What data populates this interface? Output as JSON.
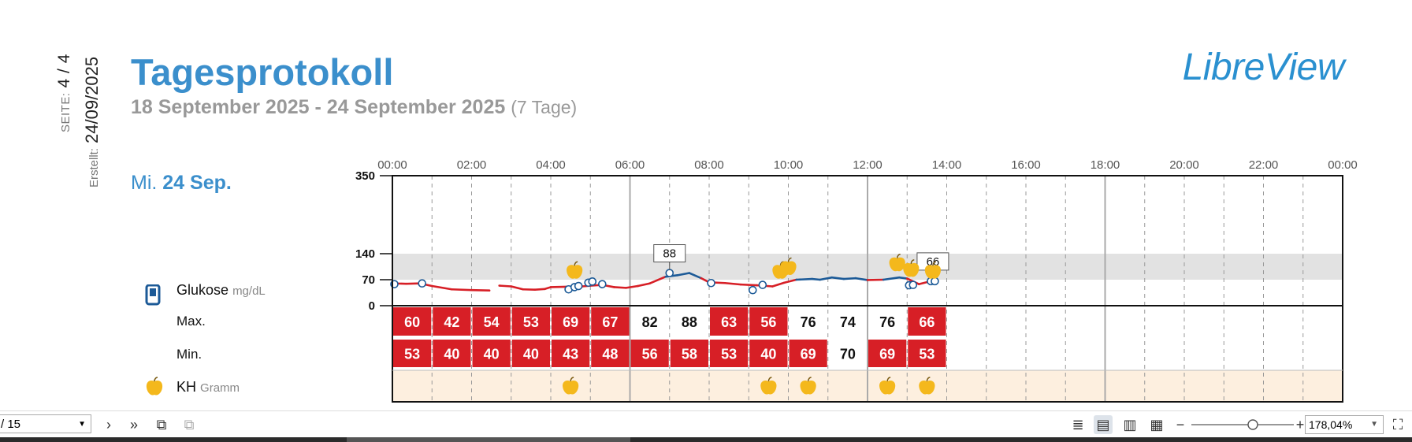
{
  "header": {
    "page_label": "SEITE:",
    "page_value": "4 / 4",
    "created_label": "Erstellt:",
    "created_value": "24/09/2025",
    "title": "Tagesprotokoll",
    "date_range": "18 September 2025 - 24 September 2025",
    "days": "(7 Tage)",
    "brand": "LibreView"
  },
  "day": {
    "weekday": "Mi.",
    "date": "24 Sep."
  },
  "legend": {
    "glucose_label": "Glukose",
    "glucose_unit": "mg/dL",
    "max_label": "Max.",
    "min_label": "Min.",
    "carbs_label": "KH",
    "carbs_unit": "Gramm"
  },
  "colors": {
    "brand": "#2a90d0",
    "low": "#d71f26",
    "inrange": "#1c5a97",
    "target": "#e2e2e2",
    "carbs_band": "#fdefdf",
    "apple": "#f4b81c"
  },
  "chart_data": {
    "type": "line",
    "x_ticks": [
      "00:00",
      "02:00",
      "04:00",
      "06:00",
      "08:00",
      "10:00",
      "12:00",
      "14:00",
      "16:00",
      "18:00",
      "20:00",
      "22:00",
      "00:00"
    ],
    "y_ticks": [
      0,
      70,
      140,
      350
    ],
    "ylim": [
      0,
      350
    ],
    "target_range": [
      70,
      140
    ],
    "glucose_series": [
      {
        "t": 0.0,
        "v": 60
      },
      {
        "t": 0.35,
        "v": 59
      },
      {
        "t": 0.7,
        "v": 60
      },
      {
        "t": 1.0,
        "v": 53
      },
      {
        "t": 1.5,
        "v": 44
      },
      {
        "t": 2.0,
        "v": 42
      },
      {
        "t": 2.45,
        "v": 41
      },
      {
        "t": 2.5,
        "v": null
      },
      {
        "t": 2.7,
        "v": 54
      },
      {
        "t": 3.0,
        "v": 52
      },
      {
        "t": 3.3,
        "v": 44
      },
      {
        "t": 3.6,
        "v": 43
      },
      {
        "t": 3.85,
        "v": 45
      },
      {
        "t": 4.0,
        "v": 50
      },
      {
        "t": 4.4,
        "v": 51
      },
      {
        "t": 4.8,
        "v": 52
      },
      {
        "t": 5.0,
        "v": 54
      },
      {
        "t": 5.3,
        "v": 56
      },
      {
        "t": 5.6,
        "v": 50
      },
      {
        "t": 5.9,
        "v": 48
      },
      {
        "t": 6.2,
        "v": 53
      },
      {
        "t": 6.5,
        "v": 60
      },
      {
        "t": 6.9,
        "v": 78
      },
      {
        "t": 7.2,
        "v": 82
      },
      {
        "t": 7.5,
        "v": 88
      },
      {
        "t": 7.8,
        "v": 74
      },
      {
        "t": 8.0,
        "v": 63
      },
      {
        "t": 8.4,
        "v": 61
      },
      {
        "t": 8.8,
        "v": 57
      },
      {
        "t": 9.2,
        "v": 55
      },
      {
        "t": 9.6,
        "v": 52
      },
      {
        "t": 9.9,
        "v": 62
      },
      {
        "t": 10.2,
        "v": 70
      },
      {
        "t": 10.6,
        "v": 72
      },
      {
        "t": 10.8,
        "v": 70
      },
      {
        "t": 11.1,
        "v": 76
      },
      {
        "t": 11.4,
        "v": 72
      },
      {
        "t": 11.7,
        "v": 74
      },
      {
        "t": 12.0,
        "v": 69
      },
      {
        "t": 12.4,
        "v": 70
      },
      {
        "t": 12.8,
        "v": 76
      },
      {
        "t": 13.0,
        "v": 73
      },
      {
        "t": 13.3,
        "v": 58
      },
      {
        "t": 13.6,
        "v": 66
      }
    ],
    "scan_points": [
      {
        "t": 0.05,
        "v": 58
      },
      {
        "t": 0.75,
        "v": 60
      },
      {
        "t": 4.45,
        "v": 44
      },
      {
        "t": 4.6,
        "v": 50
      },
      {
        "t": 4.7,
        "v": 53
      },
      {
        "t": 4.95,
        "v": 62
      },
      {
        "t": 5.05,
        "v": 65
      },
      {
        "t": 5.3,
        "v": 58
      },
      {
        "t": 7.0,
        "v": 88
      },
      {
        "t": 8.05,
        "v": 61
      },
      {
        "t": 9.1,
        "v": 42
      },
      {
        "t": 9.35,
        "v": 56
      },
      {
        "t": 13.05,
        "v": 55
      },
      {
        "t": 13.15,
        "v": 56
      },
      {
        "t": 13.6,
        "v": 66
      },
      {
        "t": 13.7,
        "v": 66
      }
    ],
    "labels": [
      {
        "t": 7.0,
        "v": 88,
        "text": "88"
      },
      {
        "t": 13.65,
        "v": 66,
        "text": "66"
      }
    ],
    "meal_markers": [
      {
        "t": 4.6,
        "v": 95
      },
      {
        "t": 9.8,
        "v": 95
      },
      {
        "t": 10.0,
        "v": 105
      },
      {
        "t": 12.75,
        "v": 115
      },
      {
        "t": 13.1,
        "v": 100
      },
      {
        "t": 13.65,
        "v": 95
      }
    ],
    "hourly_max": [
      {
        "hour": 0,
        "value": "60",
        "low": true
      },
      {
        "hour": 1,
        "value": "42",
        "low": true
      },
      {
        "hour": 2,
        "value": "54",
        "low": true
      },
      {
        "hour": 3,
        "value": "53",
        "low": true
      },
      {
        "hour": 4,
        "value": "69",
        "low": true
      },
      {
        "hour": 5,
        "value": "67",
        "low": true
      },
      {
        "hour": 6,
        "value": "82",
        "low": false
      },
      {
        "hour": 7,
        "value": "88",
        "low": false
      },
      {
        "hour": 8,
        "value": "63",
        "low": true
      },
      {
        "hour": 9,
        "value": "56",
        "low": true
      },
      {
        "hour": 10,
        "value": "76",
        "low": false
      },
      {
        "hour": 11,
        "value": "74",
        "low": false
      },
      {
        "hour": 12,
        "value": "76",
        "low": false
      },
      {
        "hour": 13,
        "value": "66",
        "low": true
      }
    ],
    "hourly_min": [
      {
        "hour": 0,
        "value": "53",
        "low": true
      },
      {
        "hour": 1,
        "value": "40",
        "low": true
      },
      {
        "hour": 2,
        "value": "40",
        "low": true
      },
      {
        "hour": 3,
        "value": "40",
        "low": true
      },
      {
        "hour": 4,
        "value": "43",
        "low": true
      },
      {
        "hour": 5,
        "value": "48",
        "low": true
      },
      {
        "hour": 6,
        "value": "56",
        "low": true
      },
      {
        "hour": 7,
        "value": "58",
        "low": true
      },
      {
        "hour": 8,
        "value": "53",
        "low": true
      },
      {
        "hour": 9,
        "value": "40",
        "low": true
      },
      {
        "hour": 10,
        "value": "69",
        "low": true
      },
      {
        "hour": 11,
        "value": "70",
        "low": false
      },
      {
        "hour": 12,
        "value": "69",
        "low": true
      },
      {
        "hour": 13,
        "value": "53",
        "low": true
      }
    ],
    "carb_markers": [
      4.5,
      9.5,
      10.5,
      12.5,
      13.5
    ]
  },
  "toolbar": {
    "page_select": "/ 15",
    "zoom_value": "178,04%"
  }
}
